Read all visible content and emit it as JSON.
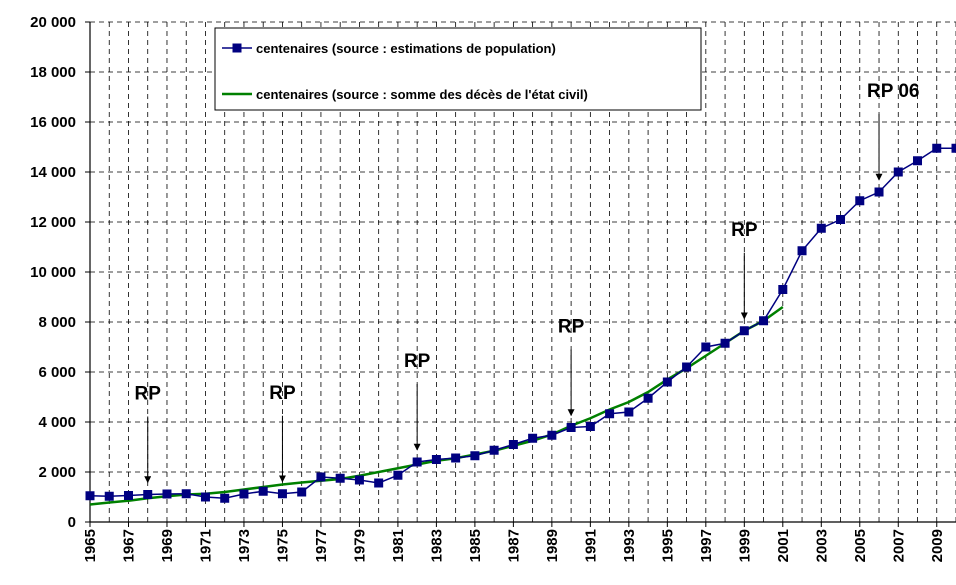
{
  "chart_data": {
    "type": "line",
    "x": [
      1965,
      1966,
      1967,
      1968,
      1969,
      1970,
      1971,
      1972,
      1973,
      1974,
      1975,
      1976,
      1977,
      1978,
      1979,
      1980,
      1981,
      1982,
      1983,
      1984,
      1985,
      1986,
      1987,
      1988,
      1989,
      1990,
      1991,
      1992,
      1993,
      1994,
      1995,
      1996,
      1997,
      1998,
      1999,
      2000,
      2001,
      2002,
      2003,
      2004,
      2005,
      2006,
      2007,
      2008,
      2009,
      2010
    ],
    "xlim": [
      1965,
      2010
    ],
    "xticks": [
      1965,
      1967,
      1969,
      1971,
      1973,
      1975,
      1977,
      1979,
      1981,
      1983,
      1985,
      1987,
      1989,
      1991,
      1993,
      1995,
      1997,
      1999,
      2001,
      2003,
      2005,
      2007,
      2009
    ],
    "ylim": [
      0,
      20000
    ],
    "yticks": [
      0,
      {
        "value": 2000,
        "label": "2 000"
      },
      {
        "value": 4000,
        "label": "4 000"
      },
      {
        "value": 6000,
        "label": "6 000"
      },
      {
        "value": 8000,
        "label": "8 000"
      },
      {
        "value": 10000,
        "label": "10 000"
      },
      {
        "value": 12000,
        "label": "12 000"
      },
      {
        "value": 14000,
        "label": "14 000"
      },
      {
        "value": 16000,
        "label": "16 000"
      },
      {
        "value": 18000,
        "label": "18 000"
      },
      {
        "value": 20000,
        "label": "20 000"
      }
    ],
    "grid": true,
    "series": [
      {
        "name": "centenaires (source : estimations de population)",
        "color": "#000080",
        "marker": "square",
        "values": [
          1050,
          1030,
          1060,
          1100,
          1120,
          1130,
          1000,
          950,
          1120,
          1230,
          1130,
          1200,
          1800,
          1750,
          1680,
          1560,
          1870,
          2400,
          2500,
          2560,
          2650,
          2870,
          3100,
          3350,
          3470,
          3780,
          3820,
          4330,
          4400,
          4950,
          5600,
          6200,
          7000,
          7150,
          7650,
          8050,
          9300,
          10850,
          11750,
          12100,
          12850,
          13200,
          14000,
          14450,
          14950,
          14950
        ]
      },
      {
        "name": "centenaires (source : somme des décès de l'état civil)",
        "color": "#008000",
        "values": [
          700,
          780,
          850,
          950,
          1030,
          1100,
          1130,
          1200,
          1300,
          1400,
          1500,
          1580,
          1650,
          1720,
          1850,
          2000,
          2150,
          2300,
          2450,
          2550,
          2700,
          2850,
          3050,
          3250,
          3500,
          3850,
          4150,
          4500,
          4800,
          5200,
          5700,
          6150,
          6650,
          7150,
          7650,
          8050,
          8600,
          null,
          null,
          null,
          null,
          null,
          null,
          null,
          null,
          null
        ]
      }
    ],
    "annotations": [
      {
        "text": "RP",
        "x": 1968
      },
      {
        "text": "RP",
        "x": 1975
      },
      {
        "text": "RP",
        "x": 1982
      },
      {
        "text": "RP",
        "x": 1990
      },
      {
        "text": "RP",
        "x": 1999
      },
      {
        "text": "RP 06",
        "x": 2006
      }
    ]
  }
}
